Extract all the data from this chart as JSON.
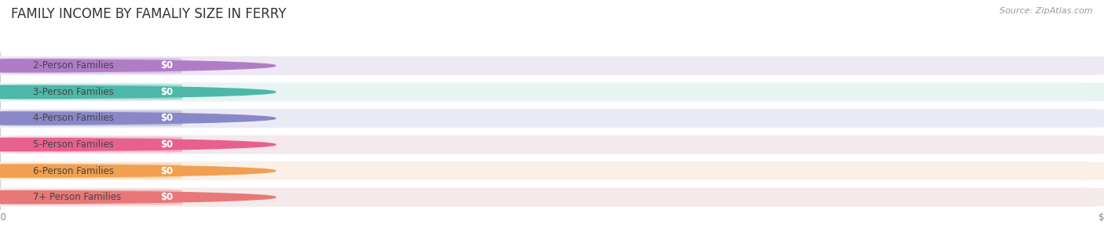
{
  "title": "FAMILY INCOME BY FAMALIY SIZE IN FERRY",
  "source": "Source: ZipAtlas.com",
  "categories": [
    "2-Person Families",
    "3-Person Families",
    "4-Person Families",
    "5-Person Families",
    "6-Person Families",
    "7+ Person Families"
  ],
  "values": [
    0,
    0,
    0,
    0,
    0,
    0
  ],
  "bar_colors": [
    "#c9a8d4",
    "#6ec4b8",
    "#a8a8d4",
    "#f48fb1",
    "#f7c48a",
    "#f4a0a0"
  ],
  "dot_colors": [
    "#b07cc6",
    "#4db8a8",
    "#8888c8",
    "#e86090",
    "#f0a050",
    "#e87878"
  ],
  "bg_row_colors": [
    "#ede8f3",
    "#e8f4f2",
    "#eaeaf4",
    "#f5e8ef",
    "#faf0e8",
    "#f5eaea"
  ],
  "background_color": "#ffffff",
  "label_fontsize": 8.5,
  "value_fontsize": 8.5,
  "title_fontsize": 12,
  "source_fontsize": 8
}
